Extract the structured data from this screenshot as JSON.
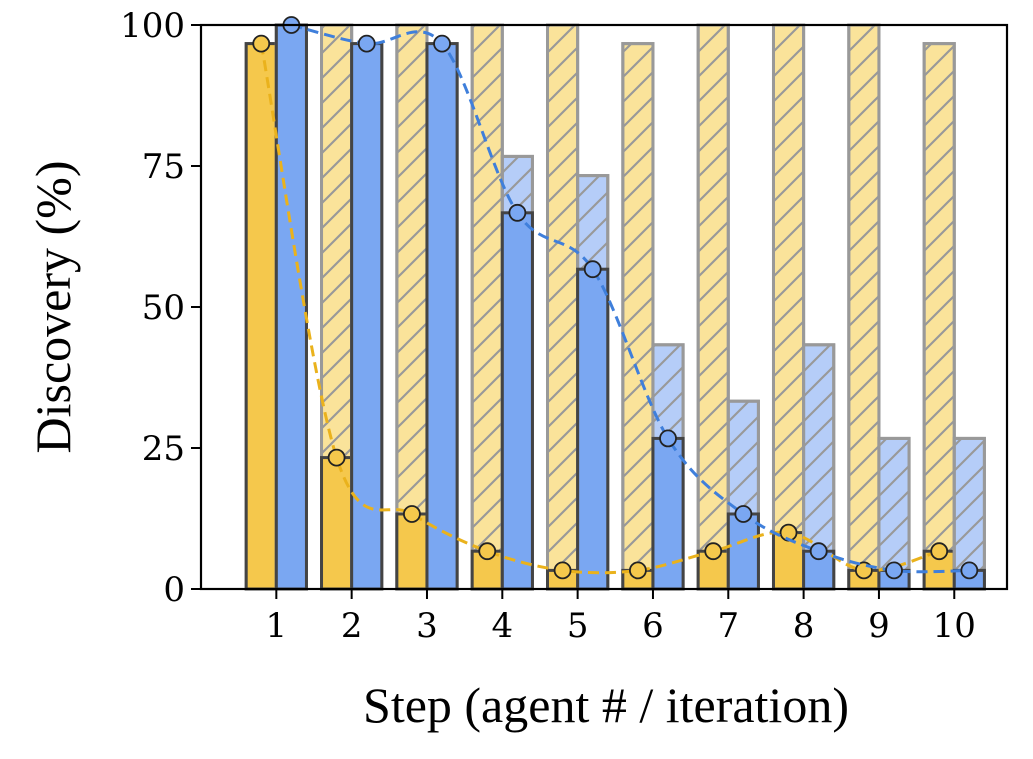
{
  "chart_data": {
    "type": "bar",
    "xlabel": "Step (agent # / iteration)",
    "ylabel": "Discovery (%)",
    "ylim": [
      0,
      100
    ],
    "xlim": [
      0,
      10.7
    ],
    "categories": [
      "1",
      "2",
      "3",
      "4",
      "5",
      "6",
      "7",
      "8",
      "9",
      "10"
    ],
    "yticks": [
      0,
      25,
      50,
      75,
      100
    ],
    "grid": false,
    "legend": "none",
    "colors": {
      "yellow_solid": "#f5c84c",
      "yellow_hatched": "#fae39a",
      "blue_solid": "#7aa7f2",
      "blue_hatched": "#b5cdf8",
      "yellow_line": "#eab21c",
      "blue_line": "#3f7fdb",
      "hatch_edge": "#999999",
      "solid_edge": "#444444"
    },
    "series": [
      {
        "style": "yellow-hatched",
        "values": [
          96.7,
          100,
          100,
          100,
          100,
          96.7,
          100,
          100,
          100,
          96.7
        ]
      },
      {
        "style": "yellow-solid",
        "values": [
          96.7,
          23.3,
          13.3,
          6.7,
          3.3,
          3.3,
          6.7,
          10,
          3.3,
          6.7
        ]
      },
      {
        "style": "blue-hatched",
        "values": [
          100,
          96.7,
          96.7,
          76.7,
          73.3,
          43.3,
          33.3,
          43.3,
          26.7,
          26.7
        ]
      },
      {
        "style": "blue-solid",
        "values": [
          100,
          96.7,
          96.7,
          66.7,
          56.7,
          26.7,
          13.3,
          6.7,
          3.3,
          3.3
        ]
      },
      {
        "style": "yellow-dashed-line",
        "values": [
          96.7,
          23.3,
          13.3,
          6.7,
          3.3,
          3.3,
          6.7,
          10,
          3.3,
          6.7
        ]
      },
      {
        "style": "blue-dashed-line",
        "values": [
          100,
          96.7,
          96.7,
          66.7,
          56.7,
          26.7,
          13.3,
          6.7,
          3.3,
          3.3
        ]
      }
    ]
  }
}
